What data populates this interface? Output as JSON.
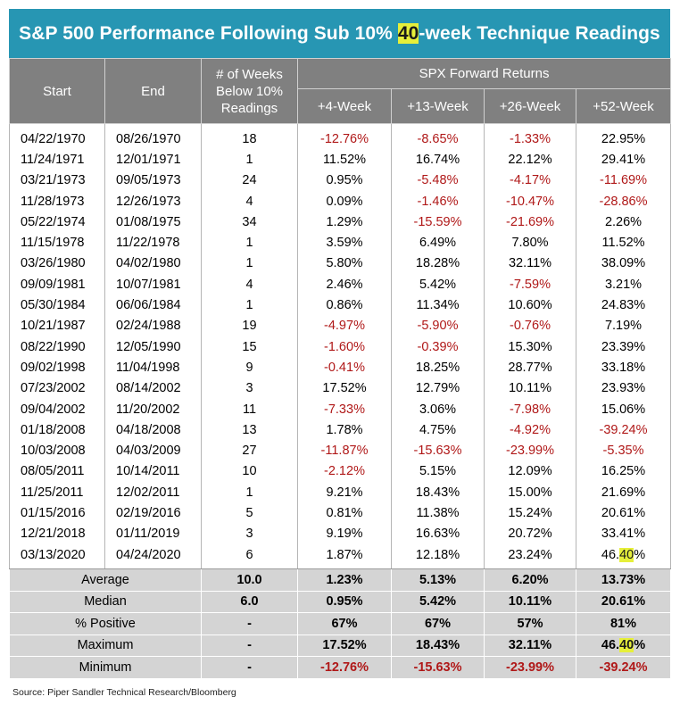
{
  "title": {
    "before": "S&P 500 Performance Following Sub 10% ",
    "highlight": "40",
    "after": "-week Technique Readings"
  },
  "headers": {
    "start": "Start",
    "end": "End",
    "weeks": [
      "# of Weeks",
      "Below 10%",
      "Readings"
    ],
    "group": "SPX Forward Returns",
    "w4": "+4-Week",
    "w13": "+13-Week",
    "w26": "+26-Week",
    "w52": "+52-Week"
  },
  "rows": [
    {
      "start": "04/22/1970",
      "end": "08/26/1970",
      "weeks": "18",
      "w4": "-12.76%",
      "w13": "-8.65%",
      "w26": "-1.33%",
      "w52": "22.95%"
    },
    {
      "start": "11/24/1971",
      "end": "12/01/1971",
      "weeks": "1",
      "w4": "11.52%",
      "w13": "16.74%",
      "w26": "22.12%",
      "w52": "29.41%"
    },
    {
      "start": "03/21/1973",
      "end": "09/05/1973",
      "weeks": "24",
      "w4": "0.95%",
      "w13": "-5.48%",
      "w26": "-4.17%",
      "w52": "-11.69%"
    },
    {
      "start": "11/28/1973",
      "end": "12/26/1973",
      "weeks": "4",
      "w4": "0.09%",
      "w13": "-1.46%",
      "w26": "-10.47%",
      "w52": "-28.86%"
    },
    {
      "start": "05/22/1974",
      "end": "01/08/1975",
      "weeks": "34",
      "w4": "1.29%",
      "w13": "-15.59%",
      "w26": "-21.69%",
      "w52": "2.26%"
    },
    {
      "start": "11/15/1978",
      "end": "11/22/1978",
      "weeks": "1",
      "w4": "3.59%",
      "w13": "6.49%",
      "w26": "7.80%",
      "w52": "11.52%"
    },
    {
      "start": "03/26/1980",
      "end": "04/02/1980",
      "weeks": "1",
      "w4": "5.80%",
      "w13": "18.28%",
      "w26": "32.11%",
      "w52": "38.09%"
    },
    {
      "start": "09/09/1981",
      "end": "10/07/1981",
      "weeks": "4",
      "w4": "2.46%",
      "w13": "5.42%",
      "w26": "-7.59%",
      "w52": "3.21%"
    },
    {
      "start": "05/30/1984",
      "end": "06/06/1984",
      "weeks": "1",
      "w4": "0.86%",
      "w13": "11.34%",
      "w26": "10.60%",
      "w52": "24.83%"
    },
    {
      "start": "10/21/1987",
      "end": "02/24/1988",
      "weeks": "19",
      "w4": "-4.97%",
      "w13": "-5.90%",
      "w26": "-0.76%",
      "w52": "7.19%"
    },
    {
      "start": "08/22/1990",
      "end": "12/05/1990",
      "weeks": "15",
      "w4": "-1.60%",
      "w13": "-0.39%",
      "w26": "15.30%",
      "w52": "23.39%"
    },
    {
      "start": "09/02/1998",
      "end": "11/04/1998",
      "weeks": "9",
      "w4": "-0.41%",
      "w13": "18.25%",
      "w26": "28.77%",
      "w52": "33.18%"
    },
    {
      "start": "07/23/2002",
      "end": "08/14/2002",
      "weeks": "3",
      "w4": "17.52%",
      "w13": "12.79%",
      "w26": "10.11%",
      "w52": "23.93%"
    },
    {
      "start": "09/04/2002",
      "end": "11/20/2002",
      "weeks": "11",
      "w4": "-7.33%",
      "w13": "3.06%",
      "w26": "-7.98%",
      "w52": "15.06%"
    },
    {
      "start": "01/18/2008",
      "end": "04/18/2008",
      "weeks": "13",
      "w4": "1.78%",
      "w13": "4.75%",
      "w26": "-4.92%",
      "w52": "-39.24%"
    },
    {
      "start": "10/03/2008",
      "end": "04/03/2009",
      "weeks": "27",
      "w4": "-11.87%",
      "w13": "-15.63%",
      "w26": "-23.99%",
      "w52": "-5.35%"
    },
    {
      "start": "08/05/2011",
      "end": "10/14/2011",
      "weeks": "10",
      "w4": "-2.12%",
      "w13": "5.15%",
      "w26": "12.09%",
      "w52": "16.25%"
    },
    {
      "start": "11/25/2011",
      "end": "12/02/2011",
      "weeks": "1",
      "w4": "9.21%",
      "w13": "18.43%",
      "w26": "15.00%",
      "w52": "21.69%"
    },
    {
      "start": "01/15/2016",
      "end": "02/19/2016",
      "weeks": "5",
      "w4": "0.81%",
      "w13": "11.38%",
      "w26": "15.24%",
      "w52": "20.61%"
    },
    {
      "start": "12/21/2018",
      "end": "01/11/2019",
      "weeks": "3",
      "w4": "9.19%",
      "w13": "16.63%",
      "w26": "20.72%",
      "w52": "33.41%"
    },
    {
      "start": "03/13/2020",
      "end": "04/24/2020",
      "weeks": "6",
      "w4": "1.87%",
      "w13": "12.18%",
      "w26": "23.24%",
      "w52": "46.40%"
    }
  ],
  "summary": [
    {
      "label": "Average",
      "weeks": "10.0",
      "w4": "1.23%",
      "w13": "5.13%",
      "w26": "6.20%",
      "w52": "13.73%"
    },
    {
      "label": "Median",
      "weeks": "6.0",
      "w4": "0.95%",
      "w13": "5.42%",
      "w26": "10.11%",
      "w52": "20.61%"
    },
    {
      "label": "% Positive",
      "weeks": "-",
      "w4": "67%",
      "w13": "67%",
      "w26": "57%",
      "w52": "81%"
    },
    {
      "label": "Maximum",
      "weeks": "-",
      "w4": "17.52%",
      "w13": "18.43%",
      "w26": "32.11%",
      "w52": "46.40%"
    },
    {
      "label": "Minimum",
      "weeks": "-",
      "w4": "-12.76%",
      "w13": "-15.63%",
      "w26": "-23.99%",
      "w52": "-39.24%"
    }
  ],
  "highlight_token": "40",
  "colors": {
    "title_bg": "#2796b3",
    "header_bg": "#808080",
    "negative": "#b01818",
    "highlight": "#e6ef3a",
    "summary_bg": "#d4d4d4"
  },
  "source": "Source: Piper Sandler Technical Research/Bloomberg"
}
